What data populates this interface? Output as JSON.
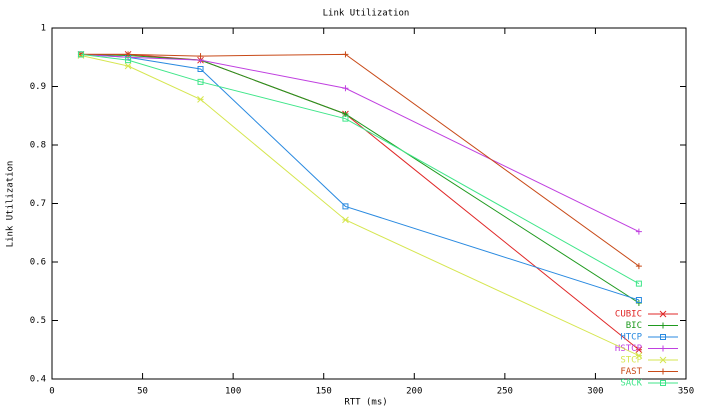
{
  "chart_data": {
    "type": "line",
    "title": "Link Utilization",
    "x_label": "RTT (ms)",
    "y_label": "Link Utilization",
    "x": [
      16,
      42,
      82,
      162,
      324
    ],
    "series": [
      {
        "name": "CUBIC",
        "color": "#e02828",
        "values": [
          0.955,
          0.955,
          0.945,
          0.853,
          0.45
        ]
      },
      {
        "name": "BIC",
        "color": "#1f9a1f",
        "values": [
          0.955,
          0.953,
          0.945,
          0.853,
          0.53
        ]
      },
      {
        "name": "HTCP",
        "color": "#2a8ae0",
        "values": [
          0.955,
          0.95,
          0.93,
          0.695,
          0.535
        ]
      },
      {
        "name": "HSTCP",
        "color": "#c040e0",
        "values": [
          0.955,
          0.95,
          0.945,
          0.897,
          0.652
        ]
      },
      {
        "name": "STCP",
        "color": "#d6e650",
        "values": [
          0.953,
          0.935,
          0.878,
          0.672,
          0.44
        ]
      },
      {
        "name": "FAST",
        "color": "#c84a18",
        "values": [
          0.955,
          0.955,
          0.952,
          0.955,
          0.593
        ]
      },
      {
        "name": "SACK",
        "color": "#40e68a",
        "values": [
          0.955,
          0.945,
          0.908,
          0.845,
          0.563
        ]
      }
    ],
    "xlim": [
      0,
      350
    ],
    "xticks": [
      0,
      50,
      100,
      150,
      200,
      250,
      300,
      350
    ],
    "ylim": [
      0.4,
      1
    ],
    "yticks": [
      0.4,
      0.5,
      0.6,
      0.7,
      0.8,
      0.9,
      1
    ],
    "grid": false,
    "legend": "lower right"
  }
}
